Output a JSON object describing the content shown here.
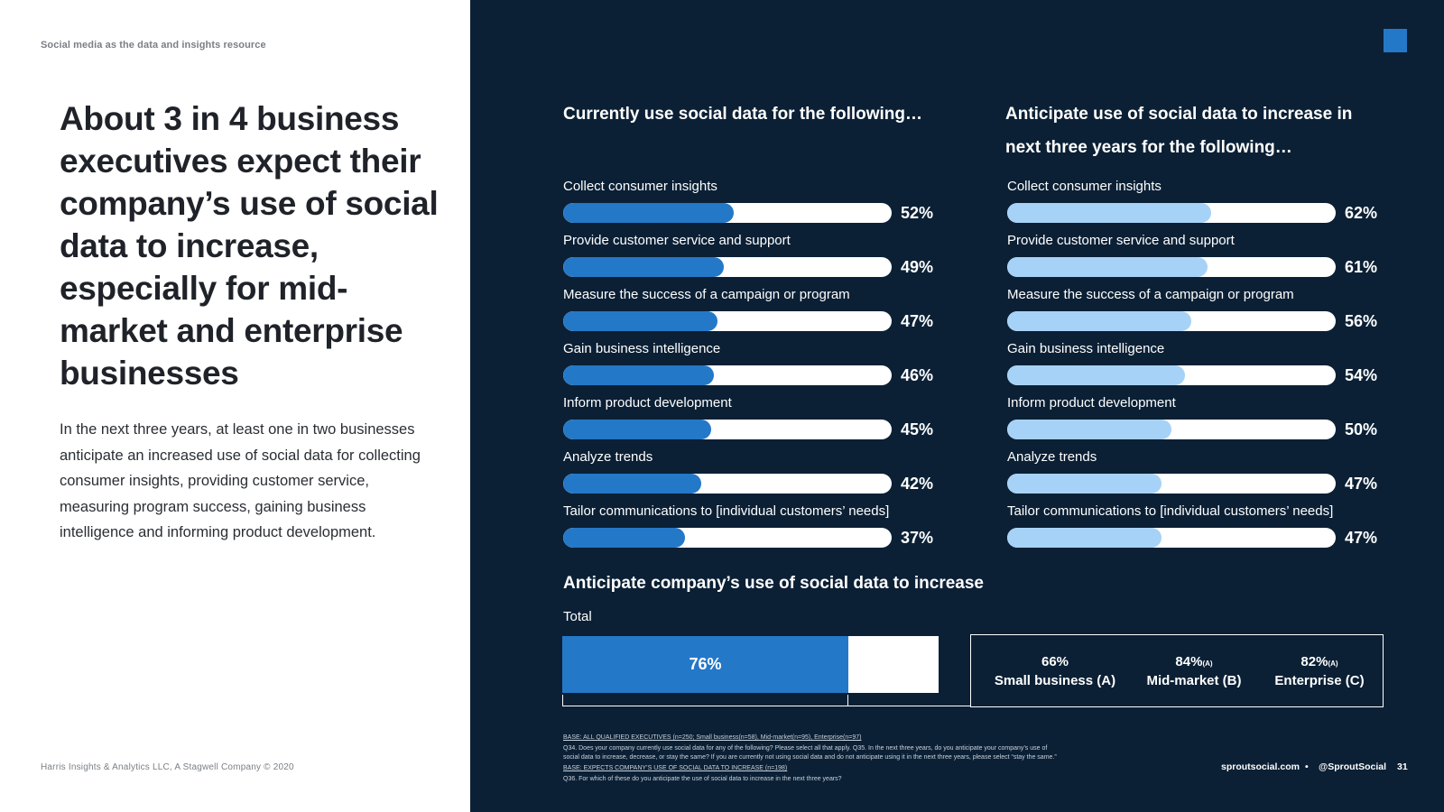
{
  "left": {
    "kicker": "Social media as the data and insights resource",
    "headline": "About 3 in 4 business executives expect their company’s use of social data to increase, especially for mid-market and enterprise businesses",
    "body": "In the next three years, at least one in two businesses anticipate an increased use of social data for collecting consumer insights, providing customer service, measuring program success, gaining business intelligence and informing product development.",
    "footer": "Harris Insights & Analytics LLC, A Stagwell Company © 2020"
  },
  "colors": {
    "dark_bg": "#0b2035",
    "accent": "#2478c8",
    "light_accent": "#a7d2f7"
  },
  "chart_data": [
    {
      "type": "bar",
      "orientation": "horizontal",
      "title": "Currently use social data for the following…",
      "categories": [
        "Collect consumer insights",
        "Provide customer service and support",
        "Measure the success of a campaign or program",
        "Gain business intelligence",
        "Inform product development",
        "Analyze trends",
        "Tailor communications to [individual customers’ needs]"
      ],
      "values": [
        52,
        49,
        47,
        46,
        45,
        42,
        37
      ],
      "labels": [
        "52%",
        "49%",
        "47%",
        "46%",
        "45%",
        "42%",
        "37%"
      ],
      "unit": "%",
      "xlim": [
        0,
        100
      ]
    },
    {
      "type": "bar",
      "orientation": "horizontal",
      "title": "Anticipate use of social data to increase in next three years for the following…",
      "categories": [
        "Collect consumer insights",
        "Provide customer service and support",
        "Measure the success of a campaign or program",
        "Gain business intelligence",
        "Inform product development",
        "Analyze trends",
        "Tailor communications to [individual customers’ needs]"
      ],
      "values": [
        62,
        61,
        56,
        54,
        50,
        47,
        47
      ],
      "labels": [
        "62%",
        "61%",
        "56%",
        "54%",
        "50%",
        "47%",
        "47%"
      ],
      "unit": "%",
      "xlim": [
        0,
        100
      ]
    },
    {
      "type": "bar",
      "title": "Anticipate company’s use of social data to increase",
      "category": "Total",
      "value": 76,
      "label": "76%",
      "xlim": [
        0,
        100
      ],
      "segments": [
        {
          "value": "66%",
          "sup": "",
          "name": "Small business (A)"
        },
        {
          "value": "84%",
          "sup": "(A)",
          "name": "Mid-market (B)"
        },
        {
          "value": "82%",
          "sup": "(A)",
          "name": "Enterprise (C)"
        }
      ]
    }
  ],
  "footnotes": [
    "BASE: ALL QUALIFIED EXECUTIVES (n=250; Small business(n=58), Mid-market(n=95), Enterprise(n=97)",
    "Q34. Does your company currently use social data for any of the following? Please select all that apply. Q35. In the next three years, do you anticipate your company’s use of",
    "social data to increase, decrease, or stay the same? If you are currently not using social data and do not anticipate using it in the next three years, please select “stay the same.”",
    "BASE: EXPECTS COMPANY’S USE OF SOCIAL DATA TO INCREASE (n=198)",
    "Q36. For which of these do you anticipate the use of social data to increase in the next three years?"
  ],
  "footer_right": {
    "site": "sproutsocial.com",
    "separator": "•",
    "handle": "@SproutSocial",
    "page": "31"
  }
}
